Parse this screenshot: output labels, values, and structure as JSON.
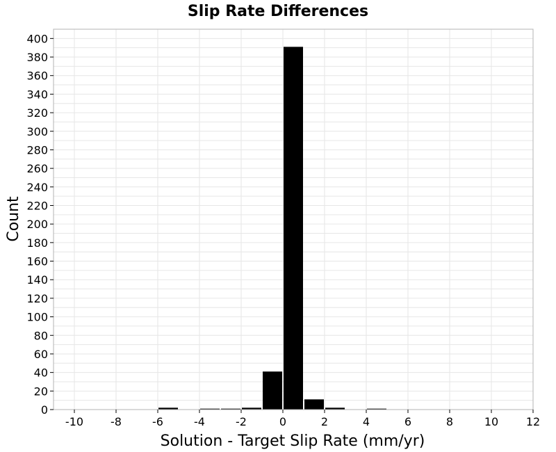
{
  "chart_data": {
    "type": "bar",
    "title": "Slip Rate Differences",
    "xlabel": "Solution - Target Slip Rate (mm/yr)",
    "ylabel": "Count",
    "xlim": [
      -11,
      12
    ],
    "ylim": [
      0,
      410
    ],
    "grid": true,
    "legend": "none",
    "bar_color": "#000000",
    "bin_width": 1,
    "x_ticks": [
      -10,
      -8,
      -6,
      -4,
      -2,
      0,
      2,
      4,
      6,
      8,
      10,
      12
    ],
    "x_tick_labels": [
      "-10",
      "-8",
      "-6",
      "-4",
      "-2",
      "0",
      "2",
      "4",
      "6",
      "8",
      "10",
      "12"
    ],
    "y_ticks": [
      0,
      20,
      40,
      60,
      80,
      100,
      120,
      140,
      160,
      180,
      200,
      220,
      240,
      260,
      280,
      300,
      320,
      340,
      360,
      380,
      400
    ],
    "y_tick_labels": [
      "0",
      "20",
      "40",
      "60",
      "80",
      "100",
      "120",
      "140",
      "160",
      "180",
      "200",
      "220",
      "240",
      "260",
      "280",
      "300",
      "320",
      "340",
      "360",
      "380",
      "400"
    ],
    "x": [
      -5.5,
      -3.5,
      -2.5,
      -1.5,
      -0.5,
      0.5,
      1.5,
      2.5,
      4.5
    ],
    "values": [
      2,
      1,
      1,
      2,
      41,
      391,
      11,
      2,
      1
    ]
  }
}
